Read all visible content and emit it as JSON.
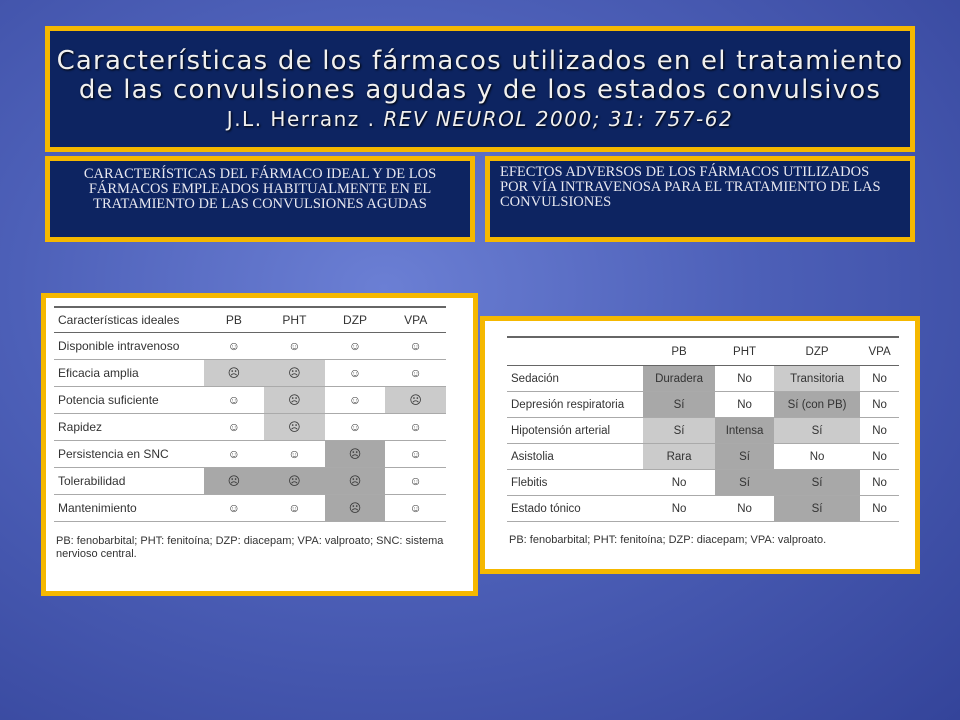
{
  "title": {
    "line1": "Características de los fármacos utilizados en el tratamiento",
    "line2": "de las convulsiones agudas y de los estados convulsivos",
    "author": "J.L. Herranz .",
    "citation": "REV NEUROL 2000; 31: 757-62"
  },
  "captions": {
    "left": "Características del fármaco ideal y de los fármacos empleados habitualmente en el tratamiento de las convulsiones agudas",
    "right": "Efectos adversos de los fármacos utilizados por vía intravenosa para el tratamiento de las convulsiones"
  },
  "table_ideal": {
    "headers": [
      "Características ideales",
      "PB",
      "PHT",
      "DZP",
      "VPA"
    ],
    "rows": [
      {
        "label": "Disponible intravenoso",
        "cells": [
          "☺",
          "☺",
          "☺",
          "☺"
        ],
        "shade": [
          "",
          "",
          "",
          ""
        ]
      },
      {
        "label": "Eficacia amplia",
        "cells": [
          "☹",
          "☹",
          "☺",
          "☺"
        ],
        "shade": [
          "light",
          "light",
          "",
          ""
        ]
      },
      {
        "label": "Potencia suficiente",
        "cells": [
          "☺",
          "☹",
          "☺",
          "☹"
        ],
        "shade": [
          "",
          "light",
          "",
          "light"
        ]
      },
      {
        "label": "Rapidez",
        "cells": [
          "☺",
          "☹",
          "☺",
          "☺"
        ],
        "shade": [
          "",
          "light",
          "",
          ""
        ]
      },
      {
        "label": "Persistencia en SNC",
        "cells": [
          "☺",
          "☺",
          "☹",
          "☺"
        ],
        "shade": [
          "",
          "",
          "dark",
          ""
        ]
      },
      {
        "label": "Tolerabilidad",
        "cells": [
          "☹",
          "☹",
          "☹",
          "☺"
        ],
        "shade": [
          "dark",
          "dark",
          "dark",
          ""
        ]
      },
      {
        "label": "Mantenimiento",
        "cells": [
          "☺",
          "☺",
          "☹",
          "☺"
        ],
        "shade": [
          "",
          "",
          "dark",
          ""
        ]
      }
    ],
    "footnote": "PB: fenobarbital; PHT: fenitoína; DZP: diacepam; VPA: valproato; SNC: sistema nervioso central."
  },
  "table_adverse": {
    "headers": [
      "",
      "PB",
      "PHT",
      "DZP",
      "VPA"
    ],
    "rows": [
      {
        "label": "Sedación",
        "cells": [
          "Duradera",
          "No",
          "Transitoria",
          "No"
        ],
        "shade": [
          "dark",
          "",
          "light",
          ""
        ]
      },
      {
        "label": "Depresión respiratoria",
        "cells": [
          "Sí",
          "No",
          "Sí (con PB)",
          "No"
        ],
        "shade": [
          "dark",
          "",
          "dark",
          ""
        ]
      },
      {
        "label": "Hipotensión arterial",
        "cells": [
          "Sí",
          "Intensa",
          "Sí",
          "No"
        ],
        "shade": [
          "light",
          "dark",
          "light",
          ""
        ]
      },
      {
        "label": "Asistolia",
        "cells": [
          "Rara",
          "Sí",
          "No",
          "No"
        ],
        "shade": [
          "light",
          "dark",
          "",
          ""
        ]
      },
      {
        "label": "Flebitis",
        "cells": [
          "No",
          "Sí",
          "Sí",
          "No"
        ],
        "shade": [
          "",
          "dark",
          "dark",
          ""
        ]
      },
      {
        "label": "Estado tónico",
        "cells": [
          "No",
          "No",
          "Sí",
          "No"
        ],
        "shade": [
          "",
          "",
          "dark",
          ""
        ]
      }
    ],
    "footnote": "PB: fenobarbital; PHT: fenitoína; DZP: diacepam; VPA: valproato."
  },
  "colors": {
    "frame": "#f5b800",
    "panel": "#0d2461",
    "shade_light": "#cbcbcb",
    "shade_dark": "#a8a8a8"
  }
}
